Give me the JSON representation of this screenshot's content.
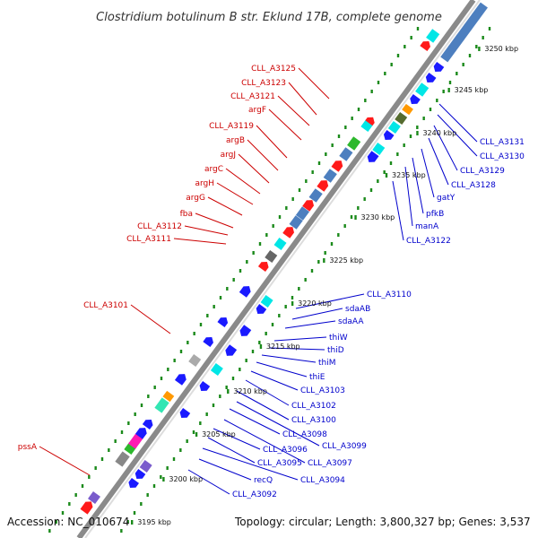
{
  "title": "Clostridium botulinum B str. Eklund 17B, complete genome",
  "footer": {
    "accession": "Accession: NC_010674",
    "summary": "Topology: circular; Length: 3,800,327 bp; Genes: 3,537"
  },
  "colors": {
    "forward": "#ff1a1a",
    "reverse": "#1a1aff",
    "red_label": "#cc0000",
    "blue_label": "#0000cc",
    "backbone": "#8a8a8a",
    "gc_dots": "#1b8a1b"
  },
  "ticks": [
    "3195 kbp",
    "3200 kbp",
    "3205 kbp",
    "3210 kbp",
    "3215 kbp",
    "3220 kbp",
    "3225 kbp",
    "3230 kbp",
    "3235 kbp",
    "3240 kbp",
    "3245 kbp",
    "3250 kbp"
  ],
  "labels_forward": [
    "CLL_A3125",
    "CLL_A3123",
    "CLL_A3121",
    "argF",
    "CLL_A3119",
    "argB",
    "argJ",
    "argC",
    "argH",
    "argG",
    "fba",
    "CLL_A3112",
    "CLL_A3111",
    "CLL_A3101",
    "pssA"
  ],
  "labels_reverse_upper": [
    "CLL_A3131",
    "CLL_A3130",
    "CLL_A3129",
    "CLL_A3128",
    "gatY",
    "pfkB",
    "manA",
    "CLL_A3122"
  ],
  "labels_reverse_lower": [
    "CLL_A3110",
    "sdaAB",
    "sdaAA",
    "thiW",
    "thiD",
    "thiM",
    "thiE",
    "CLL_A3103",
    "CLL_A3102",
    "CLL_A3100",
    "CLL_A3099",
    "CLL_A3098",
    "CLL_A3097",
    "CLL_A3096",
    "CLL_A3095",
    "CLL_A3094",
    "recQ",
    "CLL_A3092"
  ]
}
